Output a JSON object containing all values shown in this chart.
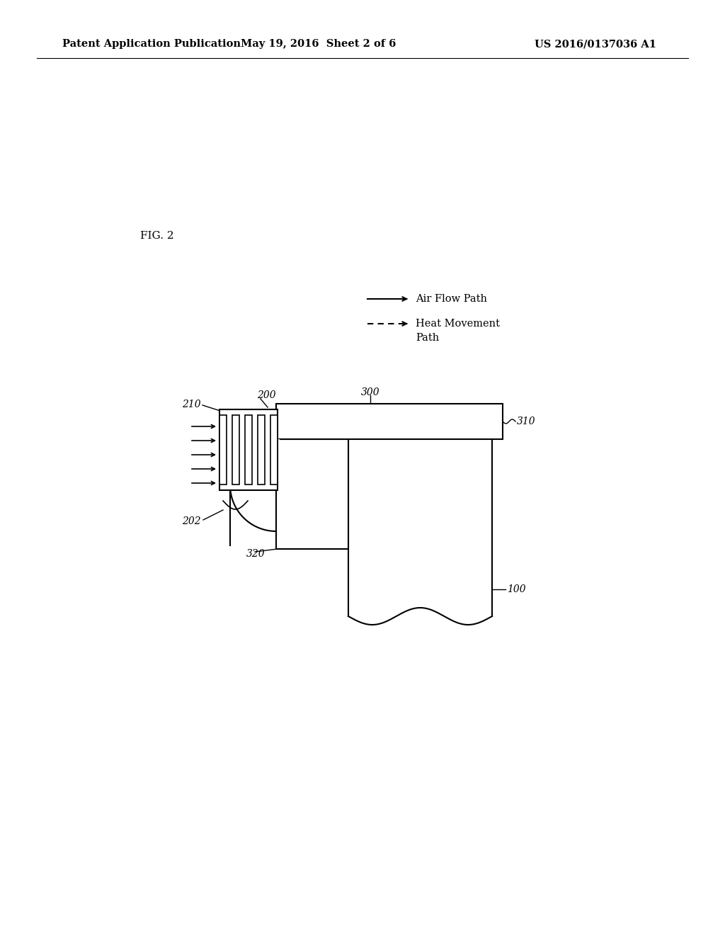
{
  "bg_color": "#ffffff",
  "header_left": "Patent Application Publication",
  "header_mid": "May 19, 2016  Sheet 2 of 6",
  "header_right": "US 2016/0137036 A1",
  "fig_label": "FIG. 2",
  "legend_air_flow": "Air Flow Path",
  "legend_heat_line1": "Heat Movement",
  "legend_heat_line2": "Path"
}
